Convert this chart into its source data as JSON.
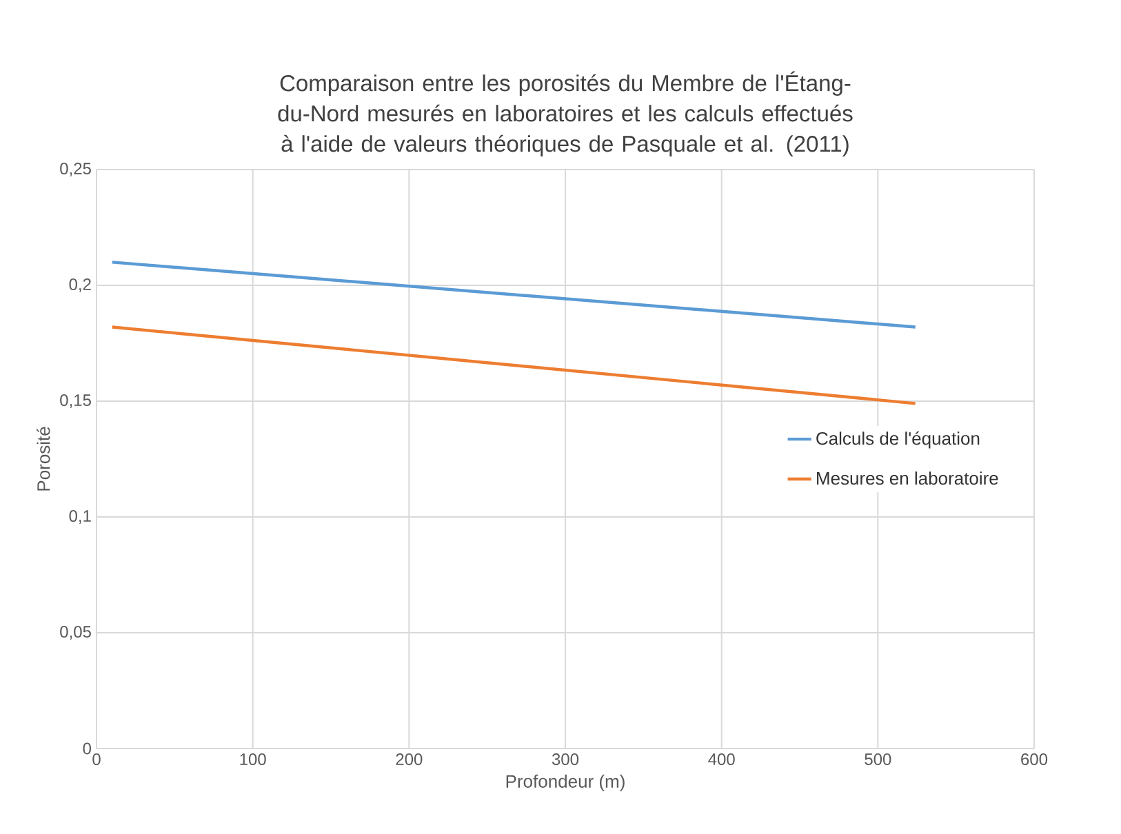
{
  "chart_data": {
    "type": "line",
    "title": "Comparaison entre les porosités du Membre de l'Étang-du-Nord mesurés en laboratoires et les calculs effectués à l'aide  de valeurs théoriques de Pasquale et al. (2011)",
    "xlabel": "Profondeur (m)",
    "ylabel": "Porosité",
    "x": [
      10,
      524
    ],
    "series": [
      {
        "name": "Calculs de l'équation",
        "color": "#5b9bd5",
        "values": [
          0.21,
          0.182
        ]
      },
      {
        "name": "Mesures en laboratoire",
        "color": "#ed7d31",
        "values": [
          0.182,
          0.149
        ]
      }
    ],
    "xlim": [
      0,
      600
    ],
    "xticks": [
      0,
      100,
      200,
      300,
      400,
      500,
      600
    ],
    "ylim": [
      0,
      0.25
    ],
    "yticks": [
      {
        "value": 0,
        "label": "0"
      },
      {
        "value": 0.05,
        "label": "0,05"
      },
      {
        "value": 0.1,
        "label": "0,1"
      },
      {
        "value": 0.15,
        "label": "0,15"
      },
      {
        "value": 0.2,
        "label": "0,2"
      },
      {
        "value": 0.25,
        "label": "0,25"
      }
    ],
    "grid": true,
    "legend": "right",
    "marker": "none",
    "line_style": "solid"
  }
}
